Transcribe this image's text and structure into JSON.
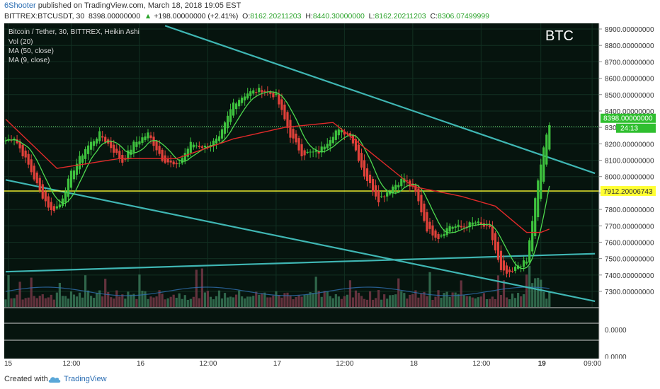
{
  "header": {
    "author": "6Shooter",
    "published": "published on TradingView.com, March 18, 2018 19:05 EST",
    "symbol": "BITTREX:BTCUSDT, 30",
    "last": "8398.00000000",
    "change": "+198.00000000 (+2.41%)",
    "o_label": "O:",
    "o": "8162.20211203",
    "h_label": "H:",
    "h": "8440.30000000",
    "l_label": "L:",
    "l": "8162.20211203",
    "c_label": "C:",
    "c": "8306.07499999"
  },
  "legend": {
    "line1": "Bitcoin / Tether, 30, BITTREX, Heikin Ashi",
    "line2": "Vol (20)",
    "line3": "MA (50, close)",
    "line4": "MA (9, close)"
  },
  "watermark": "BTC",
  "footer": {
    "created": "Created with",
    "brand": "TradingView"
  },
  "chart_data": {
    "type": "candlestick",
    "ylim": [
      7200,
      8920
    ],
    "y_ticks": [
      "8900.00000000",
      "8800.00000000",
      "8700.00000000",
      "8600.00000000",
      "8500.00000000",
      "8400.00000000",
      "8300.00000000",
      "8200.00000000",
      "8100.00000000",
      "8000.00000000",
      "7900.00000000",
      "7800.00000000",
      "7700.00000000",
      "7600.00000000",
      "7500.00000000",
      "7400.00000000",
      "7300.00000000"
    ],
    "y_tick_values": [
      8900,
      8800,
      8700,
      8600,
      8500,
      8400,
      8300,
      8200,
      8100,
      8000,
      7900,
      7800,
      7700,
      7600,
      7500,
      7400,
      7300
    ],
    "x_ticks": [
      "15",
      "12:00",
      "16",
      "12:00",
      "17",
      "12:00",
      "18",
      "12:00",
      "19",
      "09:00"
    ],
    "last_price_label": "8398.00000000",
    "countdown_label": "24:13",
    "horizontal_level_label": "7912.20006743",
    "horizontal_level": 7912.2,
    "last_price": 8306,
    "colors": {
      "up": "#3ec23e",
      "down": "#e0413a",
      "ma50": "#e02a2a",
      "ma9": "#4ed84e",
      "level": "#ffff33",
      "trendline": "#3fb6b3"
    },
    "indicator_ticks": [
      "0.0000",
      "0.0000"
    ],
    "anchors": [
      {
        "t": 0,
        "p": 8220
      },
      {
        "t": 3,
        "p": 8240
      },
      {
        "t": 8,
        "p": 8070
      },
      {
        "t": 12,
        "p": 7910
      },
      {
        "t": 16,
        "p": 7790
      },
      {
        "t": 19,
        "p": 7830
      },
      {
        "t": 23,
        "p": 8020
      },
      {
        "t": 28,
        "p": 8170
      },
      {
        "t": 33,
        "p": 8260
      },
      {
        "t": 37,
        "p": 8180
      },
      {
        "t": 41,
        "p": 8090
      },
      {
        "t": 45,
        "p": 8200
      },
      {
        "t": 50,
        "p": 8260
      },
      {
        "t": 55,
        "p": 8110
      },
      {
        "t": 60,
        "p": 8060
      },
      {
        "t": 65,
        "p": 8200
      },
      {
        "t": 70,
        "p": 8180
      },
      {
        "t": 75,
        "p": 8230
      },
      {
        "t": 80,
        "p": 8450
      },
      {
        "t": 85,
        "p": 8510
      },
      {
        "t": 90,
        "p": 8530
      },
      {
        "t": 95,
        "p": 8490
      },
      {
        "t": 100,
        "p": 8250
      },
      {
        "t": 104,
        "p": 8140
      },
      {
        "t": 110,
        "p": 8150
      },
      {
        "t": 116,
        "p": 8280
      },
      {
        "t": 121,
        "p": 8260
      },
      {
        "t": 126,
        "p": 8010
      },
      {
        "t": 131,
        "p": 7860
      },
      {
        "t": 136,
        "p": 7940
      },
      {
        "t": 140,
        "p": 7990
      },
      {
        "t": 144,
        "p": 7900
      },
      {
        "t": 148,
        "p": 7680
      },
      {
        "t": 152,
        "p": 7630
      },
      {
        "t": 156,
        "p": 7700
      },
      {
        "t": 160,
        "p": 7690
      },
      {
        "t": 165,
        "p": 7720
      },
      {
        "t": 170,
        "p": 7680
      },
      {
        "t": 174,
        "p": 7420
      },
      {
        "t": 177,
        "p": 7400
      },
      {
        "t": 180,
        "p": 7460
      },
      {
        "t": 183,
        "p": 7480
      },
      {
        "t": 186,
        "p": 7860
      },
      {
        "t": 189,
        "p": 8180
      },
      {
        "t": 191,
        "p": 8306
      }
    ],
    "ma50": [
      {
        "t": 0,
        "p": 8350
      },
      {
        "t": 18,
        "p": 8050
      },
      {
        "t": 40,
        "p": 8110
      },
      {
        "t": 60,
        "p": 8110
      },
      {
        "t": 80,
        "p": 8230
      },
      {
        "t": 98,
        "p": 8300
      },
      {
        "t": 115,
        "p": 8330
      },
      {
        "t": 128,
        "p": 8150
      },
      {
        "t": 143,
        "p": 7940
      },
      {
        "t": 160,
        "p": 7880
      },
      {
        "t": 172,
        "p": 7820
      },
      {
        "t": 183,
        "p": 7660
      },
      {
        "t": 188,
        "p": 7660
      },
      {
        "t": 191,
        "p": 7680
      }
    ],
    "trendlines": [
      {
        "t1": 56,
        "p1": 8920,
        "t2": 207,
        "p2": 8020
      },
      {
        "t1": 0,
        "p1": 7980,
        "t2": 207,
        "p2": 7240
      },
      {
        "t1": 0,
        "p1": 7420,
        "t2": 207,
        "p2": 7530
      }
    ]
  }
}
